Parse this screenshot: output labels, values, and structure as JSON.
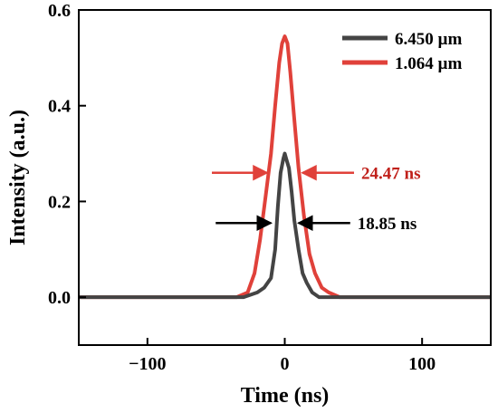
{
  "chart_data": {
    "type": "line",
    "title": "",
    "xlabel": "Time (ns)",
    "ylabel": "Intensity (a.u.)",
    "xlim": [
      -150,
      150
    ],
    "ylim": [
      -0.1,
      0.6
    ],
    "xticks": [
      -100,
      0,
      100
    ],
    "yticks": [
      0.0,
      0.2,
      0.4,
      0.6
    ],
    "xtick_labels": [
      "−100",
      "0",
      "100"
    ],
    "ytick_labels": [
      "0.0",
      "0.2",
      "0.4",
      "0.6"
    ],
    "grid": false,
    "legend_position": "top-right",
    "series": [
      {
        "name": "6.450 µm",
        "color": "#444444",
        "x": [
          -150,
          -110,
          -80,
          -50,
          -30,
          -20,
          -15,
          -10,
          -7,
          -5,
          -3,
          -1,
          0,
          1,
          3,
          5,
          7,
          10,
          13,
          16,
          20,
          25,
          30,
          40,
          60,
          100,
          150
        ],
        "y": [
          0.0,
          0.0,
          0.0,
          0.0,
          0.0,
          0.01,
          0.02,
          0.04,
          0.1,
          0.19,
          0.26,
          0.29,
          0.3,
          0.29,
          0.27,
          0.22,
          0.16,
          0.1,
          0.05,
          0.03,
          0.01,
          0.0,
          0.0,
          0.0,
          0.0,
          0.0,
          0.0
        ]
      },
      {
        "name": "1.064 µm",
        "color": "#e0413a",
        "x": [
          -150,
          -110,
          -80,
          -50,
          -35,
          -27,
          -22,
          -18,
          -14,
          -10,
          -7,
          -4,
          -2,
          0,
          2,
          4,
          7,
          10,
          14,
          18,
          22,
          27,
          32,
          40,
          55,
          100,
          150
        ],
        "y": [
          0.0,
          0.0,
          0.0,
          0.0,
          0.0,
          0.01,
          0.05,
          0.12,
          0.21,
          0.3,
          0.4,
          0.49,
          0.53,
          0.545,
          0.53,
          0.47,
          0.37,
          0.27,
          0.17,
          0.09,
          0.05,
          0.02,
          0.01,
          0.0,
          0.0,
          0.0,
          0.0
        ]
      }
    ],
    "annotations": [
      {
        "text": "24.47 ns",
        "color": "#c0201a",
        "y": 0.26,
        "x_left": -12.2,
        "x_right": 12.2
      },
      {
        "text": "18.85 ns",
        "color": "#000000",
        "y": 0.155,
        "x_left": -9.4,
        "x_right": 9.4
      }
    ]
  }
}
